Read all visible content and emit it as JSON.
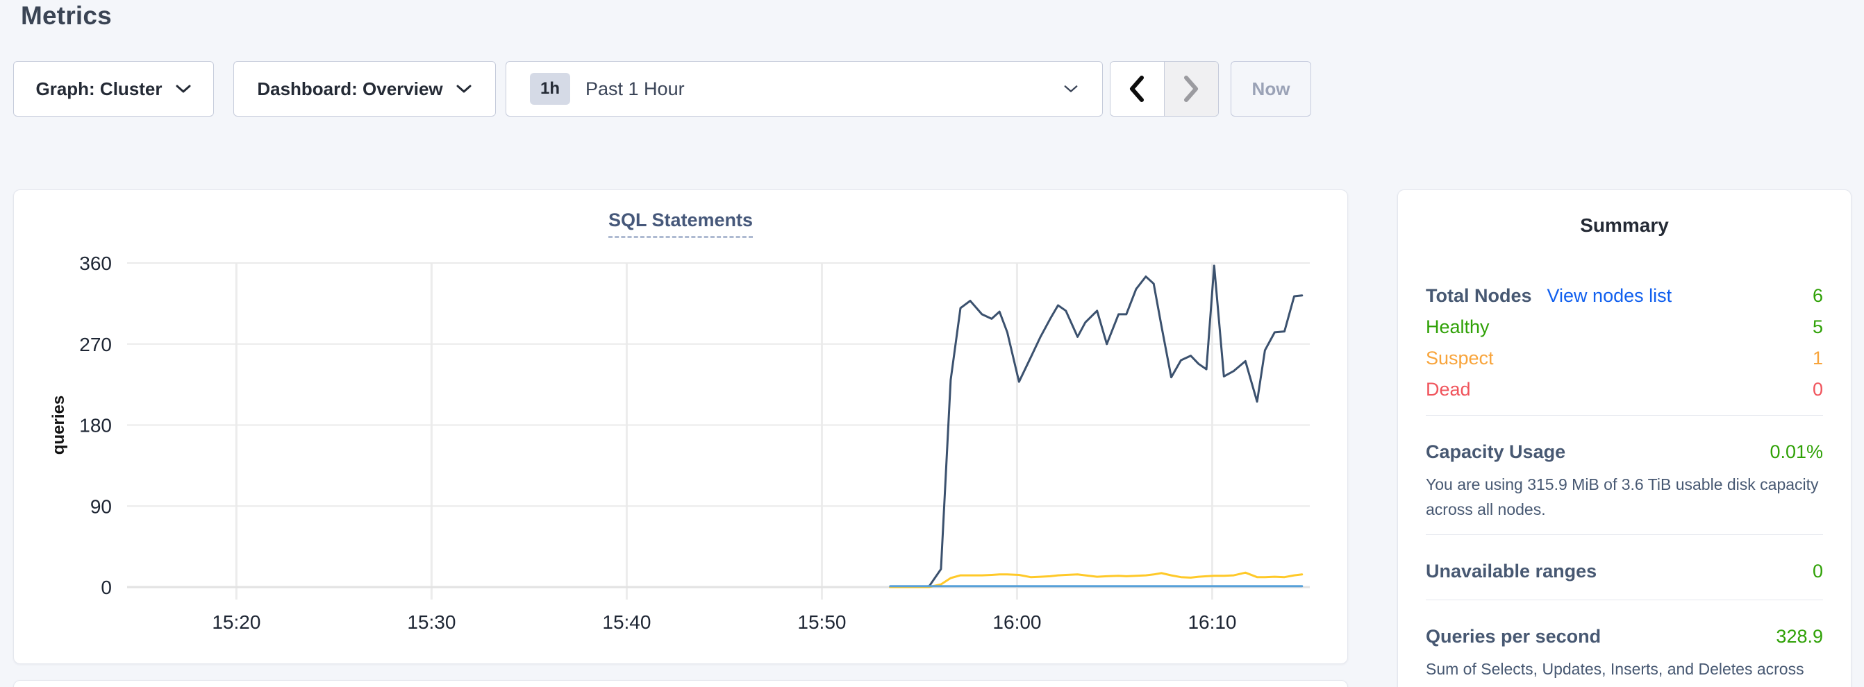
{
  "page": {
    "title": "Metrics"
  },
  "toolbar": {
    "graph_dropdown_label": "Graph: Cluster",
    "dashboard_dropdown_label": "Dashboard: Overview",
    "time_window": {
      "badge": "1h",
      "label": "Past 1 Hour"
    },
    "now_button_label": "Now"
  },
  "summary": {
    "title": "Summary",
    "total_nodes_label": "Total Nodes",
    "view_nodes_link": "View nodes list",
    "total_nodes_value": "6",
    "healthy_label": "Healthy",
    "healthy_value": "5",
    "suspect_label": "Suspect",
    "suspect_value": "1",
    "dead_label": "Dead",
    "dead_value": "0",
    "capacity_label": "Capacity Usage",
    "capacity_value": "0.01%",
    "capacity_desc": "You are using 315.9 MiB of 3.6 TiB usable disk capacity across all nodes.",
    "unavailable_label": "Unavailable ranges",
    "unavailable_value": "0",
    "qps_label": "Queries per second",
    "qps_value": "328.9",
    "qps_desc": "Sum of Selects, Updates, Inserts, and Deletes across your entire cluster."
  },
  "colors": {
    "green": "#2fa106",
    "orange": "#f8a43b",
    "red": "#f0545c",
    "link_blue": "#105fee",
    "slate": "#475872",
    "dark": "#242a35",
    "navy_line": "#3b516e",
    "yellow_line": "#ffc928",
    "blue_line": "#57a0d8"
  },
  "chart_data": {
    "type": "line",
    "title": "SQL Statements",
    "xlabel": "",
    "ylabel": "queries",
    "ylim": [
      0,
      360
    ],
    "y_ticks": [
      0,
      90,
      180,
      270,
      360
    ],
    "x_ticks": [
      {
        "label": "15:20",
        "t": 20
      },
      {
        "label": "15:30",
        "t": 30
      },
      {
        "label": "15:40",
        "t": 40
      },
      {
        "label": "15:50",
        "t": 50
      },
      {
        "label": "16:00",
        "t": 60
      },
      {
        "label": "16:10",
        "t": 70
      }
    ],
    "x_domain_minutes_after_1500": [
      14.4,
      75
    ],
    "grid": true,
    "legend": "none",
    "x": [
      53.5,
      54,
      54.5,
      55,
      55.5,
      56.1,
      56.6,
      57.1,
      57.6,
      58.2,
      58.7,
      59.1,
      59.5,
      60.1,
      60.7,
      61.2,
      61.7,
      62.1,
      62.5,
      63.1,
      63.5,
      64.1,
      64.6,
      65.2,
      65.6,
      66.1,
      66.6,
      67,
      67.4,
      67.9,
      68.4,
      68.9,
      69.3,
      69.7,
      70.1,
      70.6,
      71.1,
      71.7,
      72.3,
      72.7,
      73.2,
      73.7,
      74.2,
      74.6
    ],
    "series": [
      {
        "name": "navy-line",
        "color": "#3b516e",
        "values": [
          0,
          0,
          0,
          0,
          1,
          20,
          230,
          310,
          318,
          303,
          298,
          306,
          283,
          228,
          255,
          278,
          298,
          313,
          307,
          278,
          294,
          307,
          270,
          303,
          303,
          331,
          345,
          337,
          290,
          233,
          252,
          257,
          248,
          242,
          357,
          234,
          240,
          251,
          206,
          263,
          283,
          284,
          323,
          324
        ]
      },
      {
        "name": "yellow-line",
        "color": "#ffc928",
        "values": [
          0,
          0,
          0,
          0,
          0,
          3,
          10,
          13,
          13,
          13,
          13.5,
          14,
          14,
          13.5,
          11,
          11.5,
          12,
          13,
          13.5,
          14,
          13,
          11.5,
          12,
          12.5,
          12,
          12.5,
          13,
          14,
          15.5,
          13,
          11,
          10.5,
          11.5,
          12,
          12.5,
          12.5,
          13,
          16,
          11,
          11,
          11.5,
          11,
          13,
          14
        ]
      },
      {
        "name": "blue-line",
        "color": "#57a0d8",
        "values": [
          1,
          1,
          1,
          1,
          1,
          1,
          1,
          1,
          1,
          1,
          1,
          1,
          1,
          1,
          1,
          1,
          1,
          1,
          1,
          1,
          1,
          1,
          1,
          1,
          1,
          1,
          1,
          1,
          1,
          1,
          1,
          1,
          1,
          1,
          1,
          1,
          1,
          1,
          1,
          1,
          1,
          1,
          1,
          1
        ]
      }
    ]
  }
}
